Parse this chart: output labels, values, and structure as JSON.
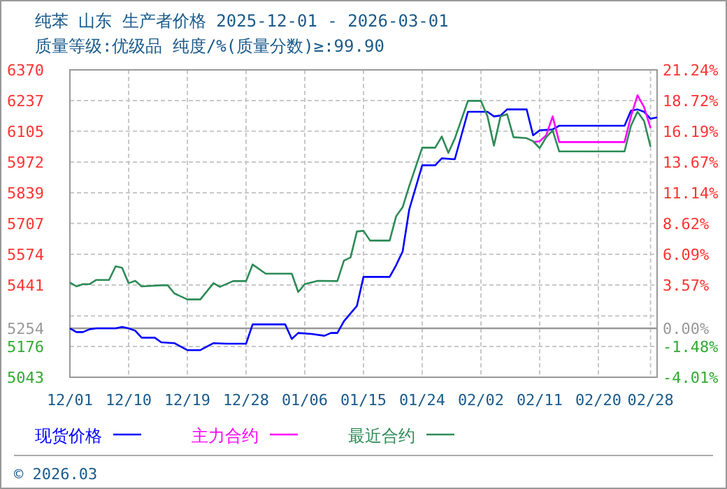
{
  "chart_data": {
    "type": "line",
    "title": "纯苯 山东 生产者价格 2025-12-01 - 2026-03-01",
    "subtitle": "质量等级:优级品 纯度/%(质量分数)≥:99.90",
    "annotations": [
      "© 2026.03"
    ],
    "xlim": [
      "2025-12-01",
      "2026-03-01"
    ],
    "xticks": [
      {
        "value": "2025-12-01",
        "label": "12/01"
      },
      {
        "value": "2025-12-10",
        "label": "12/10"
      },
      {
        "value": "2025-12-19",
        "label": "12/19"
      },
      {
        "value": "2025-12-28",
        "label": "12/28"
      },
      {
        "value": "2026-01-06",
        "label": "01/06"
      },
      {
        "value": "2026-01-15",
        "label": "01/15"
      },
      {
        "value": "2026-01-24",
        "label": "01/24"
      },
      {
        "value": "2026-02-02",
        "label": "02/02"
      },
      {
        "value": "2026-02-11",
        "label": "02/11"
      },
      {
        "value": "2026-02-20",
        "label": "02/20"
      },
      {
        "value": "2026-02-28",
        "label": "02/28"
      }
    ],
    "ylim": [
      5043,
      6370
    ],
    "yticks": [
      6370,
      6237,
      6105,
      5972,
      5839,
      5707,
      5574,
      5441,
      {
        "value": 5308,
        "label": null
      },
      5254,
      5176,
      5043
    ],
    "y2lim": [
      -4.01,
      21.24
    ],
    "y2ticks": [
      {
        "value": 21.24,
        "label": "21.24%"
      },
      {
        "value": 18.72,
        "label": "18.72%"
      },
      {
        "value": 16.19,
        "label": "16.19%"
      },
      {
        "value": 13.67,
        "label": "13.67%"
      },
      {
        "value": 11.14,
        "label": "11.14%"
      },
      {
        "value": 8.62,
        "label": "8.62%"
      },
      {
        "value": 6.09,
        "label": "6.09%"
      },
      {
        "value": 3.57,
        "label": "3.57%"
      },
      {
        "value": 0,
        "label": "0.00%"
      },
      {
        "value": -1.48,
        "label": "-1.48%"
      },
      {
        "value": -4.01,
        "label": "-4.01%"
      }
    ],
    "ref_lines": [
      {
        "axis": "y",
        "value": 5254,
        "label": null,
        "color": "#999999"
      }
    ],
    "grid": true,
    "legend": "bottom",
    "series": [
      {
        "name": "现货价格",
        "color": "#0000ff",
        "x": [
          "2025-12-01",
          "2025-12-02",
          "2025-12-03",
          "2025-12-04",
          "2025-12-05",
          "2025-12-08",
          "2025-12-09",
          "2025-12-10",
          "2025-12-11",
          "2025-12-12",
          "2025-12-14",
          "2025-12-15",
          "2025-12-17",
          "2025-12-19",
          "2025-12-21",
          "2025-12-23",
          "2025-12-25",
          "2025-12-28",
          "2025-12-29",
          "2026-01-03",
          "2026-01-04",
          "2026-01-05",
          "2026-01-07",
          "2026-01-09",
          "2026-01-10",
          "2026-01-11",
          "2026-01-12",
          "2026-01-14",
          "2026-01-15",
          "2026-01-19",
          "2026-01-20",
          "2026-01-21",
          "2026-01-22",
          "2026-01-24",
          "2026-01-26",
          "2026-01-27",
          "2026-01-29",
          "2026-01-31",
          "2026-02-03",
          "2026-02-04",
          "2026-02-05",
          "2026-02-06",
          "2026-02-09",
          "2026-02-10",
          "2026-02-11",
          "2026-02-13",
          "2026-02-14",
          "2026-02-24",
          "2026-02-25",
          "2026-02-26",
          "2026-02-27",
          "2026-02-28",
          "2026-03-01"
        ],
        "values": [
          5254,
          5238,
          5238,
          5250,
          5254,
          5254,
          5260,
          5254,
          5244,
          5214,
          5214,
          5194,
          5190,
          5160,
          5160,
          5190,
          5188,
          5188,
          5271,
          5271,
          5208,
          5234,
          5230,
          5222,
          5234,
          5234,
          5285,
          5351,
          5476,
          5476,
          5526,
          5586,
          5767,
          5958,
          5958,
          5988,
          5984,
          6189,
          6189,
          6169,
          6173,
          6199,
          6199,
          6088,
          6109,
          6113,
          6129,
          6129,
          6193,
          6199,
          6189,
          6159,
          6165
        ]
      },
      {
        "name": "主力合约",
        "color": "#ff00ff",
        "x": [
          "2026-02-10",
          "2026-02-11",
          "2026-02-12",
          "2026-02-13",
          "2026-02-14",
          "2026-02-24",
          "2026-02-25",
          "2026-02-26",
          "2026-02-27",
          "2026-02-28"
        ],
        "values": [
          6058,
          6062,
          6088,
          6169,
          6058,
          6058,
          6169,
          6260,
          6209,
          6119
        ]
      },
      {
        "name": "最近合约",
        "color": "#2e8b57",
        "x": [
          "2025-12-01",
          "2025-12-02",
          "2025-12-03",
          "2025-12-04",
          "2025-12-05",
          "2025-12-07",
          "2025-12-08",
          "2025-12-09",
          "2025-12-10",
          "2025-12-11",
          "2025-12-12",
          "2025-12-15",
          "2025-12-16",
          "2025-12-17",
          "2025-12-19",
          "2025-12-21",
          "2025-12-23",
          "2025-12-24",
          "2025-12-26",
          "2025-12-28",
          "2025-12-29",
          "2025-12-31",
          "2026-01-04",
          "2026-01-05",
          "2026-01-06",
          "2026-01-08",
          "2026-01-11",
          "2026-01-12",
          "2026-01-13",
          "2026-01-14",
          "2026-01-15",
          "2026-01-16",
          "2026-01-19",
          "2026-01-20",
          "2026-01-21",
          "2026-01-22",
          "2026-01-24",
          "2026-01-26",
          "2026-01-27",
          "2026-01-28",
          "2026-01-29",
          "2026-01-31",
          "2026-02-02",
          "2026-02-03",
          "2026-02-04",
          "2026-02-05",
          "2026-02-06",
          "2026-02-07",
          "2026-02-09",
          "2026-02-10",
          "2026-02-11",
          "2026-02-12",
          "2026-02-13",
          "2026-02-14",
          "2026-02-24",
          "2026-02-25",
          "2026-02-26",
          "2026-02-27",
          "2026-02-28"
        ],
        "values": [
          5452,
          5435,
          5445,
          5445,
          5463,
          5463,
          5522,
          5516,
          5449,
          5459,
          5435,
          5440,
          5440,
          5405,
          5379,
          5379,
          5449,
          5433,
          5458,
          5458,
          5530,
          5490,
          5490,
          5411,
          5445,
          5459,
          5458,
          5546,
          5560,
          5672,
          5675,
          5633,
          5633,
          5737,
          5777,
          5868,
          6034,
          6034,
          6082,
          6012,
          6073,
          6236,
          6236,
          6169,
          6043,
          6169,
          6179,
          6079,
          6075,
          6062,
          6032,
          6079,
          6109,
          6018,
          6018,
          6129,
          6189,
          6149,
          6038
        ]
      }
    ]
  }
}
